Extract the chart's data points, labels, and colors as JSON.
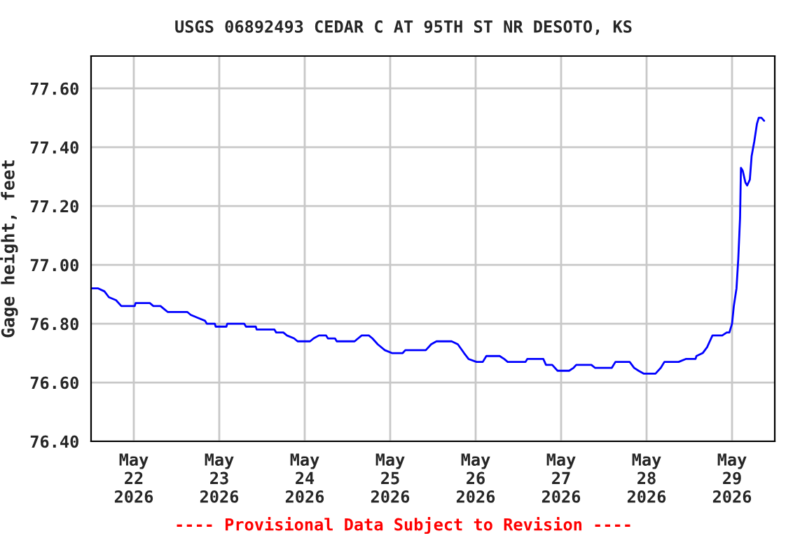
{
  "chart_data": {
    "type": "line",
    "title": "USGS 06892493 CEDAR C AT 95TH ST NR DESOTO, KS",
    "ylabel": "Gage height, feet",
    "annotations": [
      "---- Provisional Data Subject to Revision ----"
    ],
    "xlim": [
      "2026-05-21T12:00",
      "2026-05-29T12:00"
    ],
    "xticks": [
      {
        "value": "2026-05-22",
        "label": "May\n22\n2026"
      },
      {
        "value": "2026-05-23",
        "label": "May\n23\n2026"
      },
      {
        "value": "2026-05-24",
        "label": "May\n24\n2026"
      },
      {
        "value": "2026-05-25",
        "label": "May\n25\n2026"
      },
      {
        "value": "2026-05-26",
        "label": "May\n26\n2026"
      },
      {
        "value": "2026-05-27",
        "label": "May\n27\n2026"
      },
      {
        "value": "2026-05-28",
        "label": "May\n28\n2026"
      },
      {
        "value": "2026-05-29",
        "label": "May\n29\n2026"
      }
    ],
    "ylim": [
      76.4,
      77.71
    ],
    "yticks": [
      {
        "value": 76.4,
        "label": "76.40"
      },
      {
        "value": 76.6,
        "label": "76.60"
      },
      {
        "value": 76.8,
        "label": "76.80"
      },
      {
        "value": 77.0,
        "label": "77.00"
      },
      {
        "value": 77.2,
        "label": "77.20"
      },
      {
        "value": 77.4,
        "label": "77.40"
      },
      {
        "value": 77.6,
        "label": "77.60"
      }
    ],
    "grid": true,
    "legend": false,
    "marker": "none",
    "line_style": "solid",
    "series": [
      {
        "color": "#0000ff",
        "x": [
          "2026-05-21T12:00",
          "2026-05-21T14:00",
          "2026-05-21T15:45",
          "2026-05-21T17:00",
          "2026-05-21T19:00",
          "2026-05-21T20:30",
          "2026-05-22T00:15",
          "2026-05-22T00:30",
          "2026-05-22T04:30",
          "2026-05-22T05:30",
          "2026-05-22T07:30",
          "2026-05-22T08:30",
          "2026-05-22T09:30",
          "2026-05-22T15:00",
          "2026-05-22T16:00",
          "2026-05-22T18:00",
          "2026-05-22T20:00",
          "2026-05-22T20:30",
          "2026-05-22T22:45",
          "2026-05-22T23:00",
          "2026-05-23T02:00",
          "2026-05-23T02:15",
          "2026-05-23T07:00",
          "2026-05-23T07:30",
          "2026-05-23T10:15",
          "2026-05-23T10:30",
          "2026-05-23T15:30",
          "2026-05-23T16:00",
          "2026-05-23T18:00",
          "2026-05-23T19:00",
          "2026-05-23T21:00",
          "2026-05-23T22:00",
          "2026-05-24T01:30",
          "2026-05-24T02:30",
          "2026-05-24T04:00",
          "2026-05-24T06:00",
          "2026-05-24T06:30",
          "2026-05-24T08:30",
          "2026-05-24T09:00",
          "2026-05-24T14:00",
          "2026-05-24T15:00",
          "2026-05-24T16:00",
          "2026-05-24T18:00",
          "2026-05-24T19:00",
          "2026-05-24T20:30",
          "2026-05-24T22:30",
          "2026-05-25T00:30",
          "2026-05-25T03:30",
          "2026-05-25T04:15",
          "2026-05-25T10:00",
          "2026-05-25T11:30",
          "2026-05-25T13:00",
          "2026-05-25T17:15",
          "2026-05-25T19:00",
          "2026-05-25T20:45",
          "2026-05-25T22:00",
          "2026-05-26T00:15",
          "2026-05-26T02:00",
          "2026-05-26T03:00",
          "2026-05-26T06:45",
          "2026-05-26T08:00",
          "2026-05-26T09:00",
          "2026-05-26T14:00",
          "2026-05-26T14:30",
          "2026-05-26T19:00",
          "2026-05-26T19:45",
          "2026-05-26T21:30",
          "2026-05-26T23:00",
          "2026-05-27T02:15",
          "2026-05-27T03:30",
          "2026-05-27T04:15",
          "2026-05-27T08:30",
          "2026-05-27T09:30",
          "2026-05-27T14:15",
          "2026-05-27T15:15",
          "2026-05-27T19:15",
          "2026-05-27T20:30",
          "2026-05-27T21:45",
          "2026-05-27T23:15",
          "2026-05-28T02:30",
          "2026-05-28T04:00",
          "2026-05-28T05:00",
          "2026-05-28T09:00",
          "2026-05-28T11:00",
          "2026-05-28T13:45",
          "2026-05-28T14:00",
          "2026-05-28T15:45",
          "2026-05-28T17:00",
          "2026-05-28T18:30",
          "2026-05-28T21:15",
          "2026-05-28T22:30",
          "2026-05-28T23:15",
          "2026-05-29T00:00",
          "2026-05-29T00:30",
          "2026-05-29T01:15",
          "2026-05-29T01:45",
          "2026-05-29T02:15",
          "2026-05-29T02:30",
          "2026-05-29T03:00",
          "2026-05-29T03:45",
          "2026-05-29T04:15",
          "2026-05-29T05:00",
          "2026-05-29T05:30",
          "2026-05-29T06:15",
          "2026-05-29T07:00",
          "2026-05-29T07:30",
          "2026-05-29T08:15",
          "2026-05-29T09:00"
        ],
        "values": [
          76.92,
          76.92,
          76.91,
          76.89,
          76.88,
          76.86,
          76.86,
          76.87,
          76.87,
          76.86,
          76.86,
          76.85,
          76.84,
          76.84,
          76.83,
          76.82,
          76.81,
          76.8,
          76.8,
          76.79,
          76.79,
          76.8,
          76.8,
          76.79,
          76.79,
          76.78,
          76.78,
          76.77,
          76.77,
          76.76,
          76.75,
          76.74,
          76.74,
          76.75,
          76.76,
          76.76,
          76.75,
          76.75,
          76.74,
          76.74,
          76.75,
          76.76,
          76.76,
          76.75,
          76.73,
          76.71,
          76.7,
          76.7,
          76.71,
          76.71,
          76.73,
          76.74,
          76.74,
          76.73,
          76.7,
          76.68,
          76.67,
          76.67,
          76.69,
          76.69,
          76.68,
          76.67,
          76.67,
          76.68,
          76.68,
          76.66,
          76.66,
          76.64,
          76.64,
          76.65,
          76.66,
          76.66,
          76.65,
          76.65,
          76.67,
          76.67,
          76.65,
          76.64,
          76.63,
          76.63,
          76.65,
          76.67,
          76.67,
          76.68,
          76.68,
          76.69,
          76.7,
          76.72,
          76.76,
          76.76,
          76.77,
          76.77,
          76.8,
          76.86,
          76.92,
          77.02,
          77.16,
          77.33,
          77.32,
          77.28,
          77.27,
          77.29,
          77.37,
          77.42,
          77.48,
          77.5,
          77.5,
          77.49
        ]
      }
    ]
  }
}
